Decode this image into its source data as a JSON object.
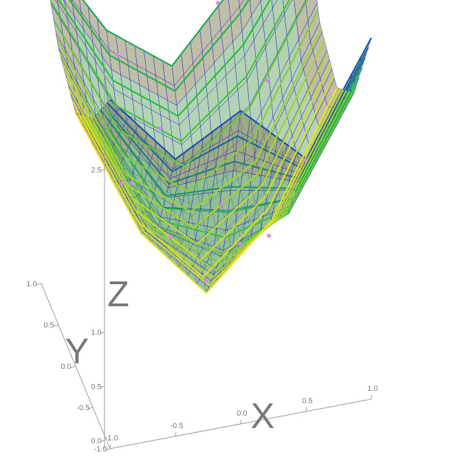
{
  "chart_data": {
    "type": "surface3d",
    "axes": {
      "x": {
        "label": "X",
        "range": [
          -1.0,
          1.0
        ],
        "tick_labels": [
          "-1.0",
          "-0.5",
          "0.0",
          "0.5",
          "1.0"
        ]
      },
      "y": {
        "label": "Y",
        "range": [
          -1.0,
          1.0
        ],
        "tick_labels": [
          "-1.0",
          "-0.5",
          "0.0",
          "0.5",
          "1.0"
        ]
      },
      "z": {
        "label": "Z",
        "range": [
          0.0,
          3.0
        ],
        "tick_labels": [
          "0.0",
          "0.5",
          "1.0",
          "2.5"
        ]
      }
    },
    "surface": {
      "grid_x": [
        -1.0,
        -0.5,
        0.0,
        0.5,
        1.0
      ],
      "grid_y": [
        -1.0,
        -0.5,
        0.0,
        0.5,
        1.0
      ],
      "z_values": [
        [
          2.9,
          2.3,
          2.6,
          2.1,
          3.0
        ],
        [
          2.4,
          1.4,
          1.1,
          1.3,
          2.2
        ],
        [
          2.1,
          1.0,
          0.4,
          0.9,
          1.9
        ],
        [
          2.3,
          1.2,
          0.8,
          1.1,
          2.1
        ],
        [
          2.8,
          2.0,
          1.6,
          2.2,
          2.9
        ]
      ],
      "wireframe": true,
      "contour_lines": true
    },
    "scatter_points": [
      {
        "x": -0.6,
        "y": 0.2,
        "z": 1.3
      },
      {
        "x": -0.3,
        "y": -0.1,
        "z": 1.0
      },
      {
        "x": 0.0,
        "y": 0.0,
        "z": 0.5
      },
      {
        "x": 0.2,
        "y": 0.3,
        "z": 0.9
      },
      {
        "x": 0.4,
        "y": -0.3,
        "z": 1.0
      },
      {
        "x": 0.6,
        "y": 0.5,
        "z": 1.7
      },
      {
        "x": -0.2,
        "y": 0.6,
        "z": 1.4
      },
      {
        "x": 0.1,
        "y": -0.6,
        "z": 1.2
      },
      {
        "x": 0.7,
        "y": -0.2,
        "z": 1.5
      },
      {
        "x": -0.7,
        "y": -0.5,
        "z": 1.8
      },
      {
        "x": 0.3,
        "y": 0.8,
        "z": 2.2
      },
      {
        "x": -0.5,
        "y": 0.7,
        "z": 2.0
      }
    ],
    "colors": {
      "wire": "#1010d0",
      "contour_low": "#f0e020",
      "contour_mid": "#20c040",
      "contour_high": "#1030d0",
      "surface_fill": "#6aa86a",
      "ridge_fill": "#c85050",
      "scatter": "#e080f0",
      "axis": "#999999",
      "label": "#777777"
    }
  }
}
